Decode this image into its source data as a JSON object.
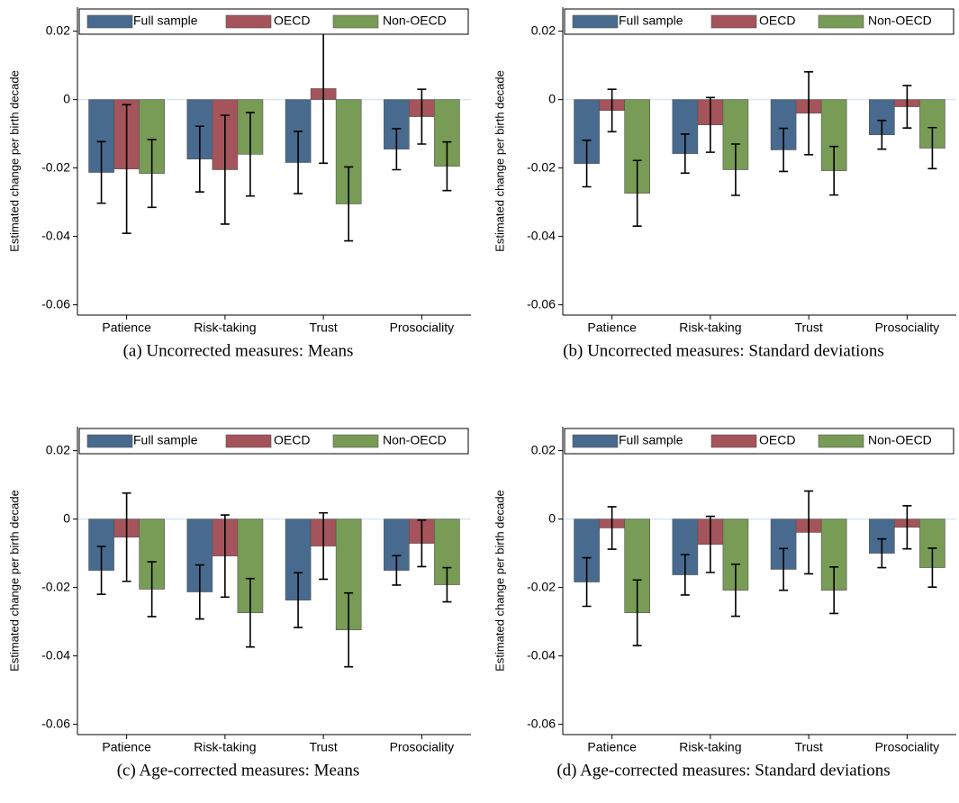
{
  "chart_data": [
    {
      "type": "bar",
      "caption": "(a) Uncorrected measures: Means",
      "ylabel": "Estimated change per birth decade",
      "categories": [
        "Patience",
        "Risk-taking",
        "Trust",
        "Prosociality"
      ],
      "series": [
        {
          "name": "Full sample",
          "color": "#486a8e",
          "values": [
            -0.0213,
            -0.0174,
            -0.0184,
            -0.0145
          ],
          "errors": [
            0.009,
            0.0096,
            0.0091,
            0.006
          ]
        },
        {
          "name": "OECD",
          "color": "#a4545a",
          "values": [
            -0.0203,
            -0.0205,
            0.0032,
            -0.005
          ],
          "errors": [
            0.0188,
            0.0159,
            0.0218,
            0.008
          ]
        },
        {
          "name": "Non-OECD",
          "color": "#789b55",
          "values": [
            -0.0216,
            -0.016,
            -0.0305,
            -0.0195
          ],
          "errors": [
            0.0099,
            0.0122,
            0.0108,
            0.0071
          ]
        }
      ],
      "ylim": [
        -0.063,
        0.027
      ],
      "yticks": [
        0.02,
        0,
        -0.02,
        -0.04,
        -0.06
      ],
      "legend": "top"
    },
    {
      "type": "bar",
      "caption": "(b) Uncorrected measures: Standard deviations",
      "ylabel": "Estimated change per birth decade",
      "categories": [
        "Patience",
        "Risk-taking",
        "Trust",
        "Prosociality"
      ],
      "series": [
        {
          "name": "Full sample",
          "color": "#486a8e",
          "values": [
            -0.0187,
            -0.0158,
            -0.0147,
            -0.0103
          ],
          "errors": [
            0.0068,
            0.0057,
            0.0063,
            0.0042
          ]
        },
        {
          "name": "OECD",
          "color": "#a4545a",
          "values": [
            -0.0032,
            -0.0074,
            -0.004,
            -0.0021
          ],
          "errors": [
            0.0062,
            0.008,
            0.0121,
            0.0062
          ]
        },
        {
          "name": "Non-OECD",
          "color": "#789b55",
          "values": [
            -0.0274,
            -0.0205,
            -0.0208,
            -0.0142
          ],
          "errors": [
            0.0096,
            0.0075,
            0.0071,
            0.006
          ]
        }
      ],
      "ylim": [
        -0.063,
        0.027
      ],
      "yticks": [
        0.02,
        0,
        -0.02,
        -0.04,
        -0.06
      ],
      "legend": "top"
    },
    {
      "type": "bar",
      "caption": "(c) Age-corrected measures: Means",
      "ylabel": "Estimated change per birth decade",
      "categories": [
        "Patience",
        "Risk-taking",
        "Trust",
        "Prosociality"
      ],
      "series": [
        {
          "name": "Full sample",
          "color": "#486a8e",
          "values": [
            -0.015,
            -0.0213,
            -0.0237,
            -0.015
          ],
          "errors": [
            0.007,
            0.0079,
            0.008,
            0.0043
          ]
        },
        {
          "name": "OECD",
          "color": "#a4545a",
          "values": [
            -0.0053,
            -0.0108,
            -0.0079,
            -0.0071
          ],
          "errors": [
            0.0129,
            0.012,
            0.0097,
            0.0068
          ]
        },
        {
          "name": "Non-OECD",
          "color": "#789b55",
          "values": [
            -0.0205,
            -0.0274,
            -0.0324,
            -0.0192
          ],
          "errors": [
            0.008,
            0.01,
            0.0108,
            0.005
          ]
        }
      ],
      "ylim": [
        -0.063,
        0.027
      ],
      "yticks": [
        0.02,
        0,
        -0.02,
        -0.04,
        -0.06
      ],
      "legend": "top"
    },
    {
      "type": "bar",
      "caption": "(d) Age-corrected measures: Standard deviations",
      "ylabel": "Estimated change per birth decade",
      "categories": [
        "Patience",
        "Risk-taking",
        "Trust",
        "Prosociality"
      ],
      "series": [
        {
          "name": "Full sample",
          "color": "#486a8e",
          "values": [
            -0.0184,
            -0.0163,
            -0.0147,
            -0.01
          ],
          "errors": [
            0.0071,
            0.0059,
            0.0061,
            0.0042
          ]
        },
        {
          "name": "OECD",
          "color": "#a4545a",
          "values": [
            -0.0026,
            -0.0074,
            -0.0039,
            -0.0024
          ],
          "errors": [
            0.0062,
            0.0082,
            0.0121,
            0.0063
          ]
        },
        {
          "name": "Non-OECD",
          "color": "#789b55",
          "values": [
            -0.0274,
            -0.0208,
            -0.0208,
            -0.0142
          ],
          "errors": [
            0.0096,
            0.0076,
            0.0068,
            0.0057
          ]
        }
      ],
      "ylim": [
        -0.063,
        0.027
      ],
      "yticks": [
        0.02,
        0,
        -0.02,
        -0.04,
        -0.06
      ],
      "legend": "top"
    }
  ]
}
